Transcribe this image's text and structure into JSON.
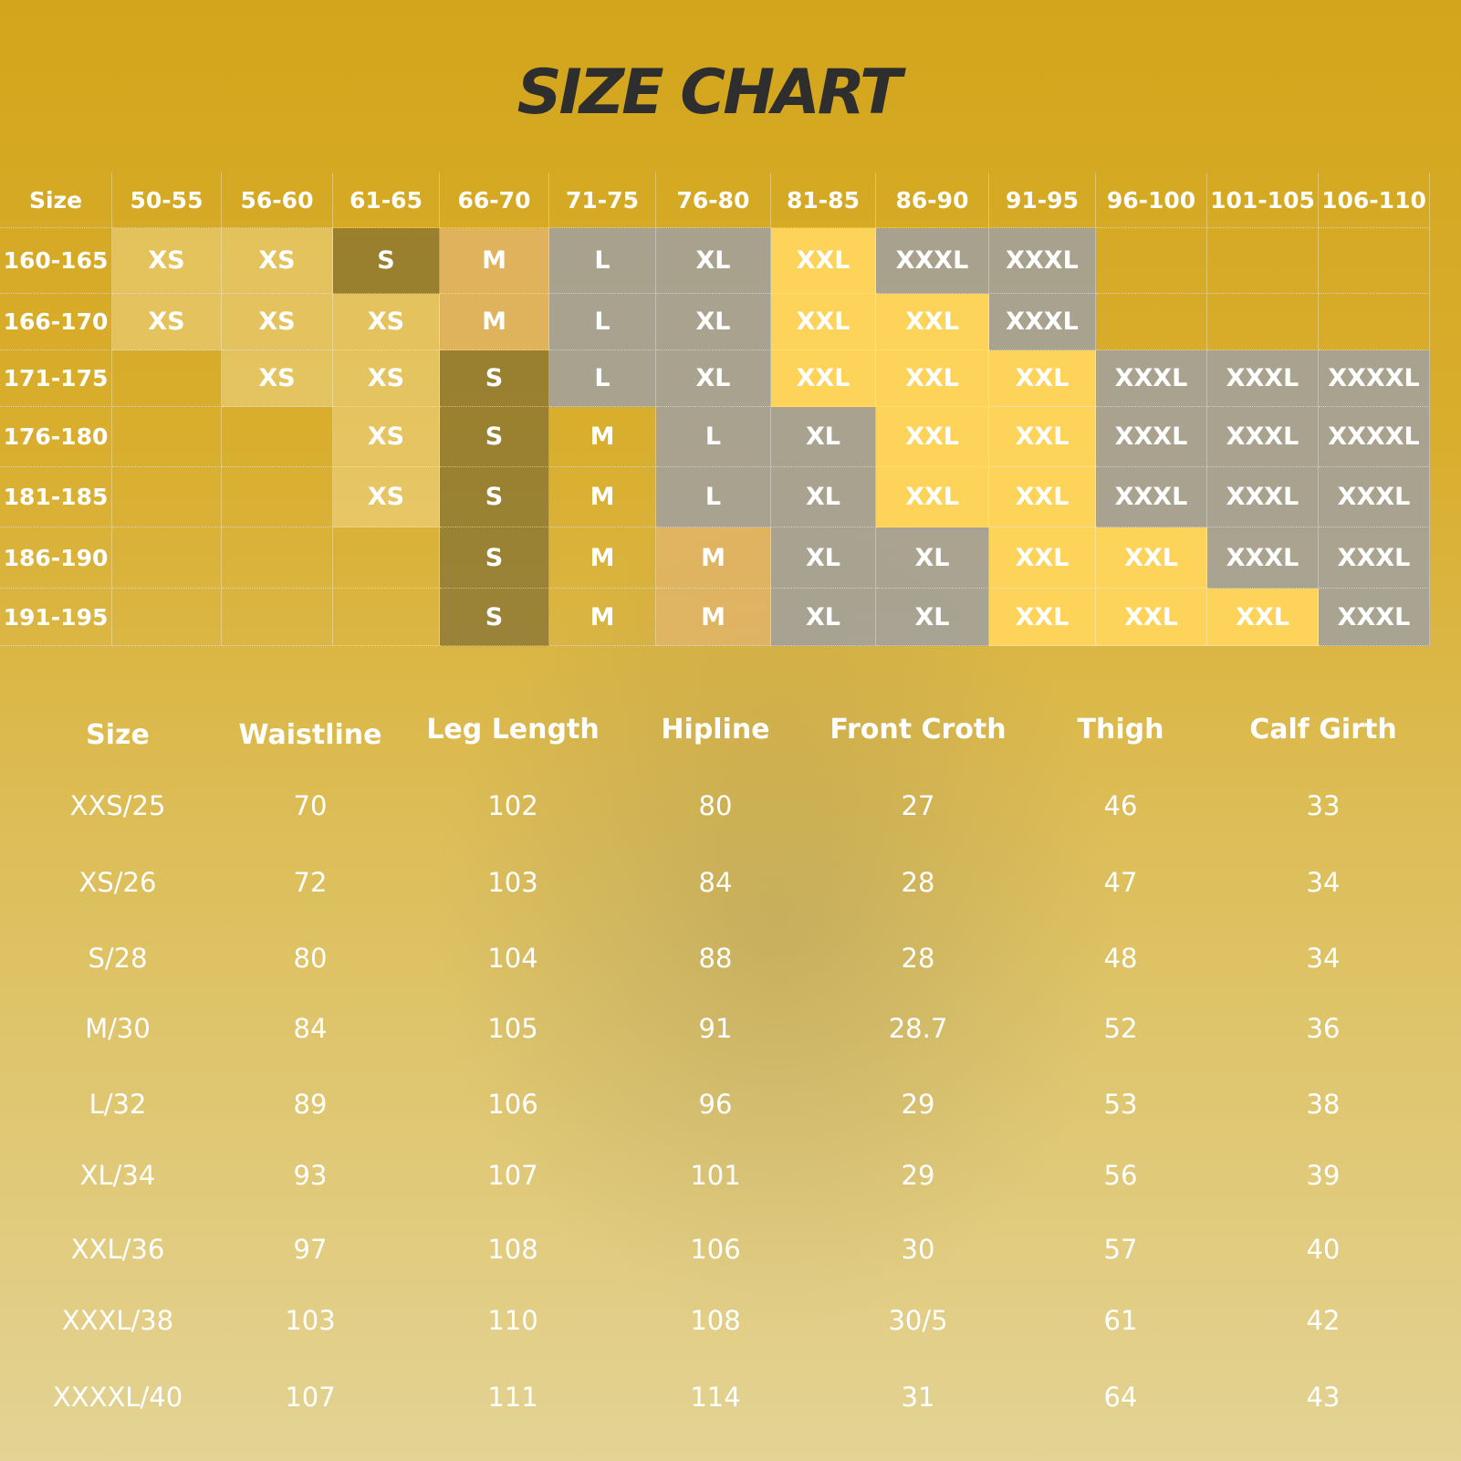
{
  "title": "SIZE CHART",
  "size_grid": {
    "corner": "Size",
    "weights": [
      "50-55",
      "56-60",
      "61-65",
      "66-70",
      "71-75",
      "76-80",
      "81-85",
      "86-90",
      "91-95",
      "96-100",
      "101-105",
      "106-110"
    ],
    "rows": [
      {
        "height": "160-165",
        "cells": [
          "XS",
          "XS",
          "S",
          "M",
          "L",
          "XL",
          "XXL",
          "XXXL",
          "XXXL",
          null,
          null,
          null
        ]
      },
      {
        "height": "166-170",
        "cells": [
          "XS",
          "XS",
          "XS",
          "M",
          "L",
          "XL",
          "XXL",
          "XXL",
          "XXXL",
          null,
          null,
          null
        ]
      },
      {
        "height": "171-175",
        "cells": [
          null,
          "XS",
          "XS",
          "S",
          "L",
          "XL",
          "XXL",
          "XXL",
          "XXL",
          "XXXL",
          "XXXL",
          "XXXXL"
        ]
      },
      {
        "height": "176-180",
        "cells": [
          null,
          null,
          "XS",
          "S",
          "M",
          "L",
          "XL",
          "XXL",
          "XXL",
          "XXXL",
          "XXXL",
          "XXXXL"
        ]
      },
      {
        "height": "181-185",
        "cells": [
          null,
          null,
          "XS",
          "S",
          "M",
          "L",
          "XL",
          "XXL",
          "XXL",
          "XXXL",
          "XXXL",
          "XXXL"
        ]
      },
      {
        "height": "186-190",
        "cells": [
          null,
          null,
          null,
          "S",
          "M",
          "M",
          "XL",
          "XL",
          "XXL",
          "XXL",
          "XXXL",
          "XXXL"
        ]
      },
      {
        "height": "191-195",
        "cells": [
          null,
          null,
          null,
          "S",
          "M",
          "M",
          "XL",
          "XL",
          "XXL",
          "XXL",
          "XXL",
          "XXXL"
        ]
      }
    ]
  },
  "measurements": {
    "header": [
      "Size",
      "Waistline",
      "Leg Length",
      "Hipline",
      "Front Croth",
      "Thigh",
      "Calf Girth"
    ],
    "rows": [
      [
        "XXS/25",
        70,
        102,
        80,
        27,
        46,
        33
      ],
      [
        "XS/26",
        72,
        103,
        84,
        28,
        47,
        34
      ],
      [
        "S/28",
        80,
        104,
        88,
        28,
        48,
        34
      ],
      [
        "M/30",
        84,
        105,
        91,
        28.7,
        52,
        36
      ],
      [
        "L/32",
        89,
        106,
        96,
        29,
        53,
        38
      ],
      [
        "XL/34",
        93,
        107,
        101,
        29,
        56,
        39
      ],
      [
        "XXL/36",
        97,
        108,
        106,
        30,
        57,
        40
      ],
      [
        "XXXL/38",
        103,
        110,
        108,
        "30/5",
        61,
        42
      ],
      [
        "XXXXL/40",
        107,
        111,
        114,
        31,
        64,
        43
      ]
    ]
  }
}
